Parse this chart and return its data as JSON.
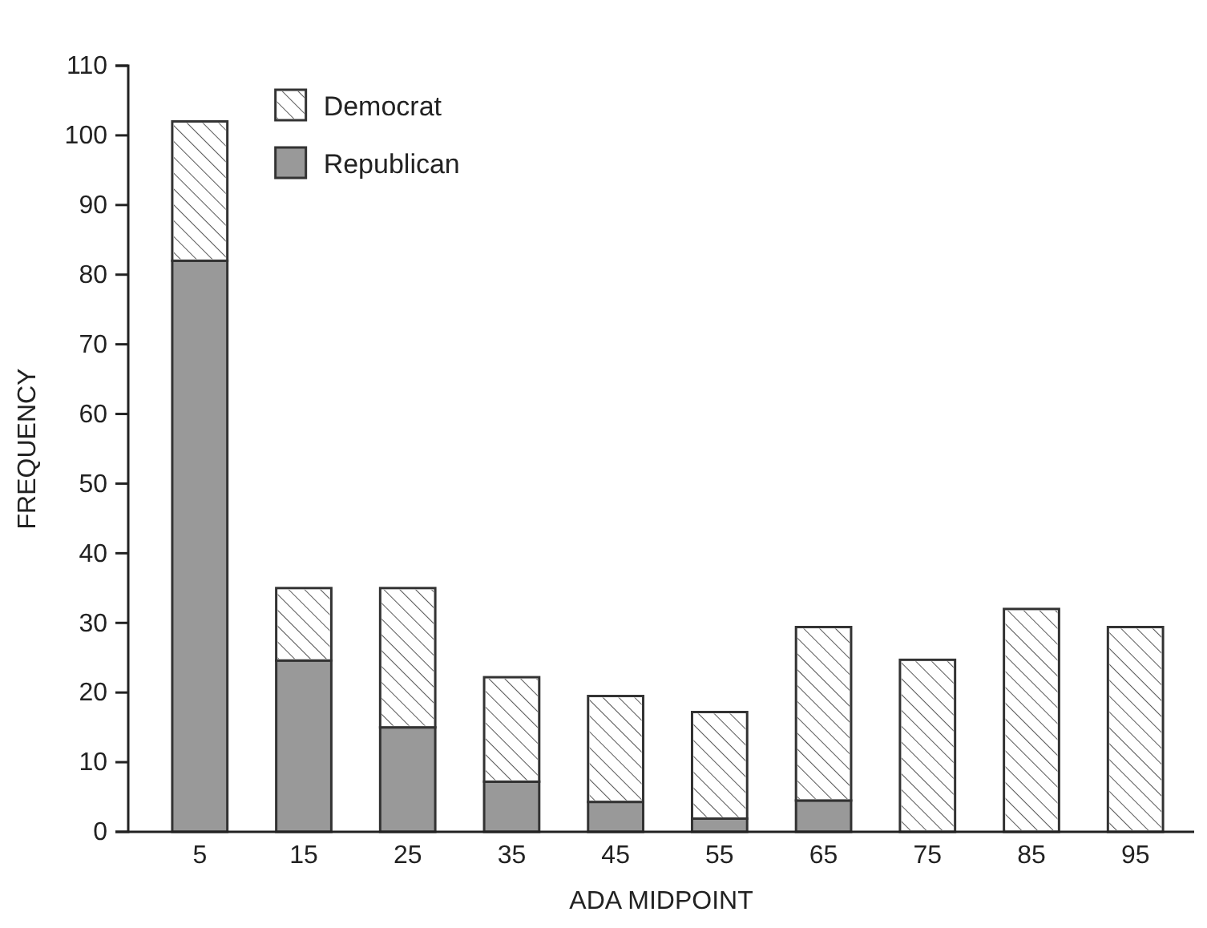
{
  "chart_data": {
    "type": "bar",
    "stacked": true,
    "xlabel": "ADA MIDPOINT",
    "ylabel": "FREQUENCY",
    "categories": [
      "5",
      "15",
      "25",
      "35",
      "45",
      "55",
      "65",
      "75",
      "85",
      "95"
    ],
    "series": [
      {
        "name": "Republican",
        "color": "#999999",
        "values": [
          82,
          24.6,
          15,
          7.2,
          4.3,
          1.9,
          4.5,
          0,
          0,
          0
        ]
      },
      {
        "name": "Democrat",
        "color": "#ffffff",
        "values": [
          20,
          10.4,
          20,
          15,
          15.2,
          15.3,
          24.9,
          24.7,
          32,
          29.4
        ]
      }
    ],
    "ylim": [
      0,
      110
    ],
    "yticks": [
      0,
      10,
      20,
      30,
      40,
      50,
      60,
      70,
      80,
      90,
      100,
      110
    ],
    "grid": false,
    "legend": "top left"
  }
}
